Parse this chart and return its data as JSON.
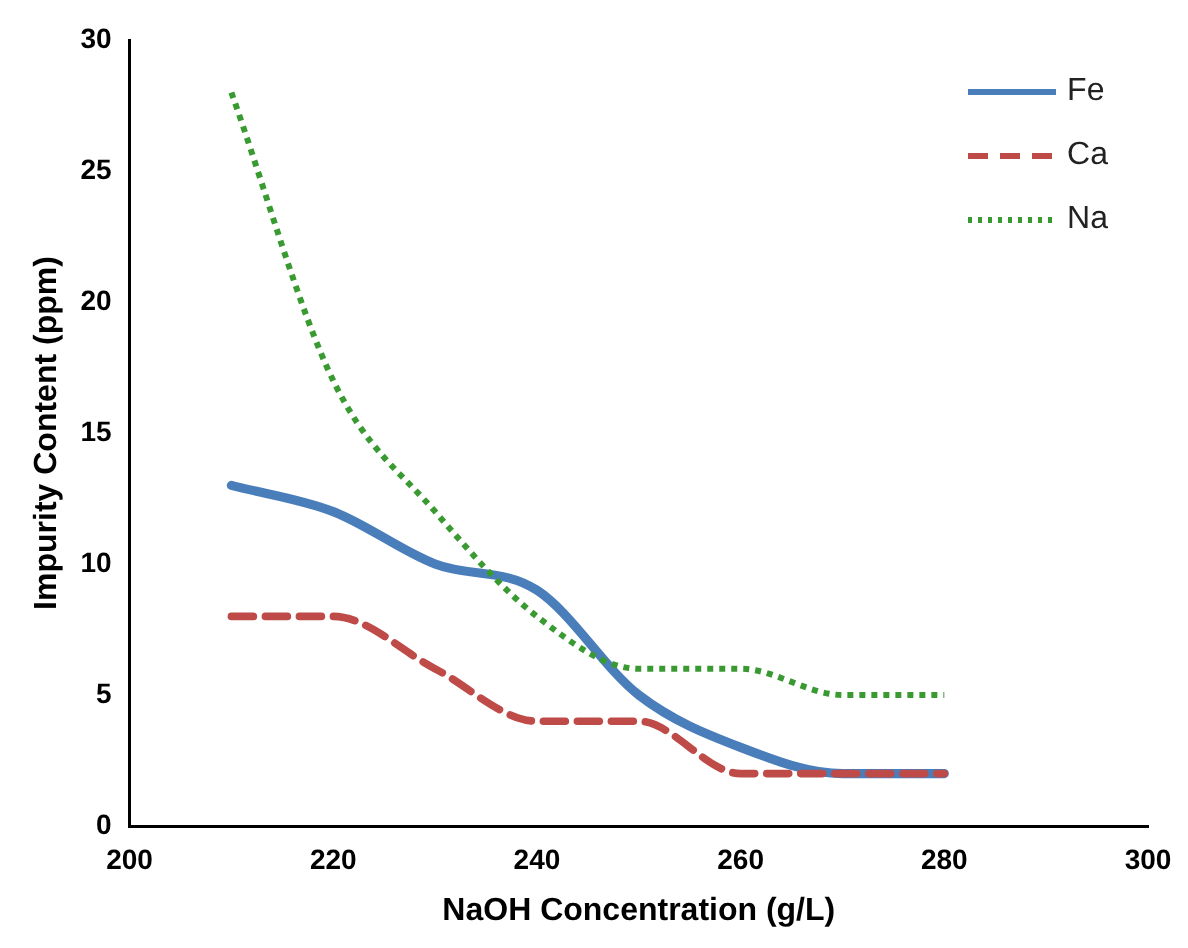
{
  "chart_data": {
    "type": "line",
    "xlabel": "NaOH Concentration (g/L)",
    "ylabel": "Impurity Content (ppm)",
    "x": [
      210,
      220,
      230,
      240,
      250,
      260,
      270,
      280
    ],
    "series": [
      {
        "name": "Fe",
        "color": "#4a7ebb",
        "line_style": "solid",
        "values": [
          13,
          12,
          10,
          9,
          5,
          3,
          2,
          2
        ]
      },
      {
        "name": "Ca",
        "color": "#be4b48",
        "line_style": "dashed",
        "values": [
          8,
          8,
          6,
          4,
          4,
          2,
          2,
          2
        ]
      },
      {
        "name": "Na",
        "color": "#3a9a32",
        "line_style": "dotted",
        "values": [
          28,
          17,
          12,
          8,
          6,
          6,
          5,
          5
        ]
      }
    ],
    "xlim": [
      200,
      300
    ],
    "xticks": [
      200,
      220,
      240,
      260,
      280,
      300
    ],
    "ylim": [
      0,
      30
    ],
    "yticks": [
      0,
      5,
      10,
      15,
      20,
      25,
      30
    ],
    "grid": false,
    "legend": "top right",
    "marker": "none"
  }
}
